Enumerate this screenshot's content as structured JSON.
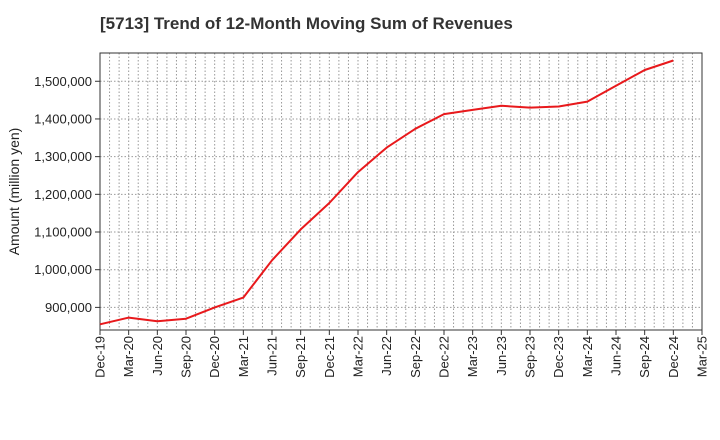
{
  "chart_data": {
    "type": "line",
    "title": "[5713]  Trend of 12-Month Moving Sum of Revenues",
    "xlabel": "",
    "ylabel": "Amount (million yen)",
    "categories": [
      "Dec-19",
      "Mar-20",
      "Jun-20",
      "Sep-20",
      "Dec-20",
      "Mar-21",
      "Jun-21",
      "Sep-21",
      "Dec-21",
      "Mar-22",
      "Jun-22",
      "Sep-22",
      "Dec-22",
      "Mar-23",
      "Jun-23",
      "Sep-23",
      "Dec-23",
      "Mar-24",
      "Jun-24",
      "Sep-24",
      "Dec-24",
      "Mar-25"
    ],
    "yticks": [
      900000,
      1000000,
      1100000,
      1200000,
      1300000,
      1400000,
      1500000
    ],
    "ytick_labels": [
      "900,000",
      "1,000,000",
      "1,100,000",
      "1,200,000",
      "1,300,000",
      "1,400,000",
      "1,500,000"
    ],
    "ylim": [
      840000,
      1575000
    ],
    "grid": true,
    "series": [
      {
        "color": "#e8191c",
        "values": [
          855000,
          873000,
          863000,
          870000,
          900000,
          926000,
          1025000,
          1107000,
          1177000,
          1259000,
          1324000,
          1374000,
          1413000,
          1424000,
          1435000,
          1430000,
          1433000,
          1446000,
          1488000,
          1530000,
          1555000,
          null
        ]
      }
    ]
  }
}
